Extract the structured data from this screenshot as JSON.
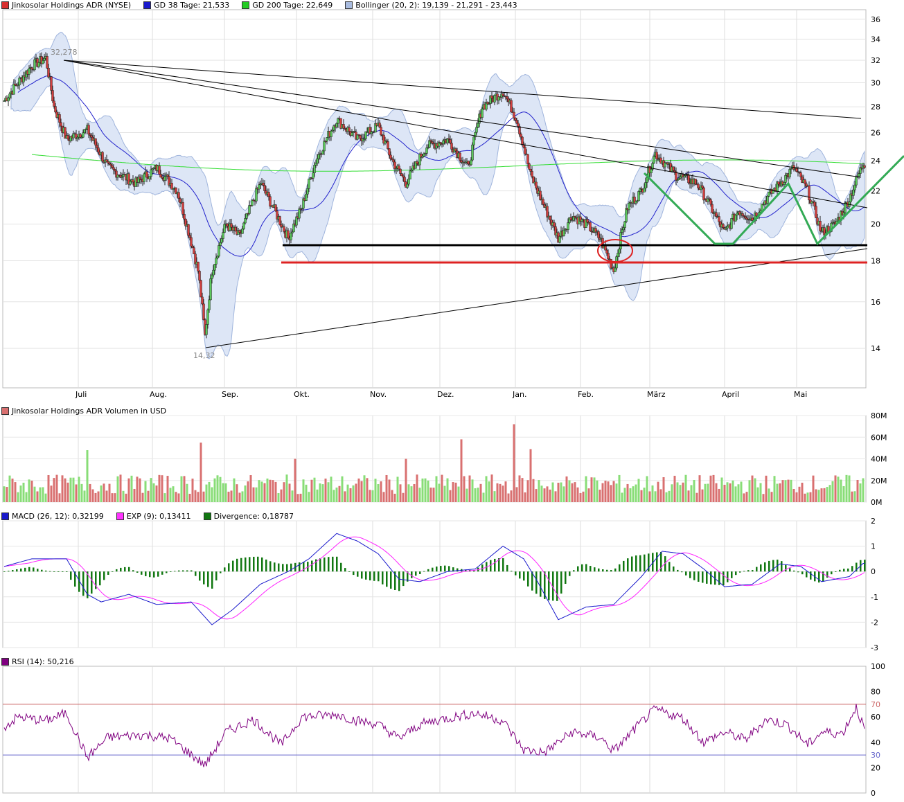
{
  "legends": {
    "price": [
      {
        "label": "Jinkosolar Holdings ADR (NYSE)",
        "color": "#d93030"
      },
      {
        "label": "GD 38 Tage: 21,533",
        "color": "#1a1acc"
      },
      {
        "label": "GD 200 Tage: 22,649",
        "color": "#22cc22"
      },
      {
        "label": "Bollinger (20, 2): 19,139 - 21,291 - 23,443",
        "color": "#a9bce0"
      }
    ],
    "volume": [
      {
        "label": "Jinkosolar Holdings ADR Volumen in USD",
        "color": "#d97070"
      }
    ],
    "macd": [
      {
        "label": "MACD (26, 12): 0,32199",
        "color": "#1a1acc"
      },
      {
        "label": "EXP (9): 0,13411",
        "color": "#ff33ff"
      },
      {
        "label": "Divergence: 0,18787",
        "color": "#117711"
      }
    ],
    "rsi": [
      {
        "label": "RSI (14): 50,216",
        "color": "#800080"
      }
    ]
  },
  "annotations": {
    "high_label": "32,278",
    "low_label": "14,32"
  },
  "colors": {
    "up": "#5cc85c",
    "down": "#d24040",
    "ma38": "#2222cc",
    "ma200": "#33dd33",
    "boll_fill": "#dde6f6",
    "boll_line": "#9fb4dc",
    "support_black": "#000000",
    "support_red": "#dd2222",
    "pattern_green": "#33aa55",
    "macd": "#1a1acc",
    "signal": "#ff22ff",
    "divergence": "#117711",
    "rsi": "#800080"
  },
  "chart_data": [
    {
      "type": "candlestick",
      "title": "Jinkosolar Holdings ADR (NYSE)",
      "x_labels": [
        "Juli",
        "Aug.",
        "Sep.",
        "Okt.",
        "Nov.",
        "Dez.",
        "Jan.",
        "Feb.",
        "März",
        "April",
        "Mai"
      ],
      "y_ticks": [
        14,
        16,
        18,
        20,
        22,
        24,
        26,
        28,
        30,
        32,
        34,
        36
      ],
      "ylim": [
        12.5,
        37
      ],
      "scale": "log",
      "grid": true,
      "close_anchors": [
        [
          0,
          28.5
        ],
        [
          20,
          31.5
        ],
        [
          30,
          32.2
        ],
        [
          36,
          28
        ],
        [
          45,
          25.5
        ],
        [
          60,
          26.2
        ],
        [
          75,
          23.5
        ],
        [
          95,
          22.5
        ],
        [
          110,
          23.5
        ],
        [
          125,
          22
        ],
        [
          140,
          17.5
        ],
        [
          145,
          14.5
        ],
        [
          150,
          17.5
        ],
        [
          160,
          20
        ],
        [
          170,
          19.3
        ],
        [
          185,
          22.5
        ],
        [
          200,
          20
        ],
        [
          205,
          19.2
        ],
        [
          215,
          21
        ],
        [
          225,
          24
        ],
        [
          240,
          27
        ],
        [
          255,
          25.5
        ],
        [
          270,
          26.5
        ],
        [
          280,
          24
        ],
        [
          290,
          22.5
        ],
        [
          305,
          25
        ],
        [
          320,
          25.5
        ],
        [
          335,
          23.5
        ],
        [
          345,
          28
        ],
        [
          360,
          29.3
        ],
        [
          370,
          27
        ],
        [
          380,
          23
        ],
        [
          390,
          21
        ],
        [
          400,
          19.2
        ],
        [
          410,
          20.5
        ],
        [
          420,
          20
        ],
        [
          430,
          19.2
        ],
        [
          440,
          17.5
        ],
        [
          450,
          21
        ],
        [
          460,
          22
        ],
        [
          470,
          24.5
        ],
        [
          485,
          23
        ],
        [
          500,
          22.5
        ],
        [
          510,
          21
        ],
        [
          520,
          19.5
        ],
        [
          530,
          20.8
        ],
        [
          540,
          20.3
        ],
        [
          550,
          21.5
        ],
        [
          560,
          22.5
        ],
        [
          570,
          23.5
        ],
        [
          580,
          22
        ],
        [
          590,
          19.5
        ],
        [
          600,
          20
        ],
        [
          610,
          21.5
        ],
        [
          620,
          23.8
        ]
      ],
      "ma38": {
        "name": "GD 38 Tage",
        "last": 21.533
      },
      "ma200": {
        "name": "GD 200 Tage",
        "last": 22.649
      },
      "bollinger": {
        "name": "Bollinger (20, 2)",
        "lower": 19.139,
        "mid": 21.291,
        "upper": 23.443
      },
      "high": {
        "label": "32,278",
        "value": 32.278
      },
      "low": {
        "label": "14,32",
        "value": 14.32
      },
      "support_lines": [
        19.05,
        18.15
      ],
      "trendlines": [
        {
          "from": [
            32.3
          ],
          "to": [
            27.4
          ]
        },
        {
          "from": [
            32.3
          ],
          "to": [
            22.8
          ]
        },
        {
          "from": [
            32.3
          ],
          "to": [
            21.2
          ]
        },
        {
          "from": [
            14.3
          ],
          "to": [
            18.9
          ]
        }
      ]
    },
    {
      "type": "bar",
      "title": "Jinkosolar Holdings ADR Volumen in USD",
      "y_ticks": [
        "0M",
        "20M",
        "40M",
        "60M",
        "80M"
      ],
      "ylim": [
        0,
        80
      ],
      "typical": 15,
      "spikes": [
        [
          45,
          55
        ],
        [
          55,
          60
        ],
        [
          60,
          48
        ],
        [
          135,
          52
        ],
        [
          142,
          55
        ],
        [
          210,
          40
        ],
        [
          330,
          58
        ],
        [
          368,
          72
        ],
        [
          380,
          49
        ],
        [
          290,
          40
        ]
      ]
    },
    {
      "type": "line",
      "title": "MACD",
      "y_ticks": [
        -3,
        -2,
        -1,
        0,
        1,
        2
      ],
      "ylim": [
        -3,
        2
      ],
      "macd_anchors": [
        [
          0,
          0.2
        ],
        [
          20,
          0.5
        ],
        [
          45,
          0.5
        ],
        [
          60,
          -0.9
        ],
        [
          70,
          -1.2
        ],
        [
          90,
          -0.9
        ],
        [
          110,
          -1.3
        ],
        [
          135,
          -1.2
        ],
        [
          150,
          -2.1
        ],
        [
          165,
          -1.5
        ],
        [
          185,
          -0.5
        ],
        [
          205,
          0
        ],
        [
          220,
          0.5
        ],
        [
          240,
          1.5
        ],
        [
          255,
          1.2
        ],
        [
          270,
          0.7
        ],
        [
          285,
          -0.3
        ],
        [
          300,
          -0.4
        ],
        [
          320,
          0
        ],
        [
          340,
          0.1
        ],
        [
          360,
          1
        ],
        [
          375,
          0.5
        ],
        [
          385,
          -0.4
        ],
        [
          400,
          -1.9
        ],
        [
          420,
          -1.4
        ],
        [
          440,
          -1.3
        ],
        [
          460,
          -0.2
        ],
        [
          475,
          0.8
        ],
        [
          490,
          0.7
        ],
        [
          505,
          0.1
        ],
        [
          520,
          -0.6
        ],
        [
          540,
          -0.5
        ],
        [
          560,
          0.3
        ],
        [
          575,
          0.2
        ],
        [
          590,
          -0.4
        ],
        [
          610,
          -0.2
        ],
        [
          620,
          0.32
        ]
      ],
      "signal_lag": 6
    },
    {
      "type": "line",
      "title": "RSI (14)",
      "y_ticks": [
        0,
        20,
        40,
        60,
        80,
        100
      ],
      "ylim": [
        0,
        100
      ],
      "overbought": 70,
      "oversold": 30,
      "rsi_anchors": [
        [
          0,
          52
        ],
        [
          10,
          60
        ],
        [
          30,
          57
        ],
        [
          45,
          63
        ],
        [
          60,
          28
        ],
        [
          75,
          44
        ],
        [
          100,
          46
        ],
        [
          120,
          43
        ],
        [
          145,
          22
        ],
        [
          160,
          48
        ],
        [
          180,
          58
        ],
        [
          200,
          38
        ],
        [
          215,
          60
        ],
        [
          240,
          62
        ],
        [
          255,
          57
        ],
        [
          270,
          54
        ],
        [
          285,
          43
        ],
        [
          300,
          54
        ],
        [
          315,
          58
        ],
        [
          340,
          63
        ],
        [
          360,
          57
        ],
        [
          375,
          34
        ],
        [
          390,
          32
        ],
        [
          410,
          48
        ],
        [
          430,
          44
        ],
        [
          440,
          33
        ],
        [
          460,
          56
        ],
        [
          470,
          66
        ],
        [
          490,
          59
        ],
        [
          505,
          40
        ],
        [
          520,
          48
        ],
        [
          535,
          42
        ],
        [
          550,
          58
        ],
        [
          565,
          54
        ],
        [
          580,
          38
        ],
        [
          590,
          48
        ],
        [
          605,
          47
        ],
        [
          615,
          68
        ],
        [
          621,
          50
        ]
      ]
    }
  ]
}
